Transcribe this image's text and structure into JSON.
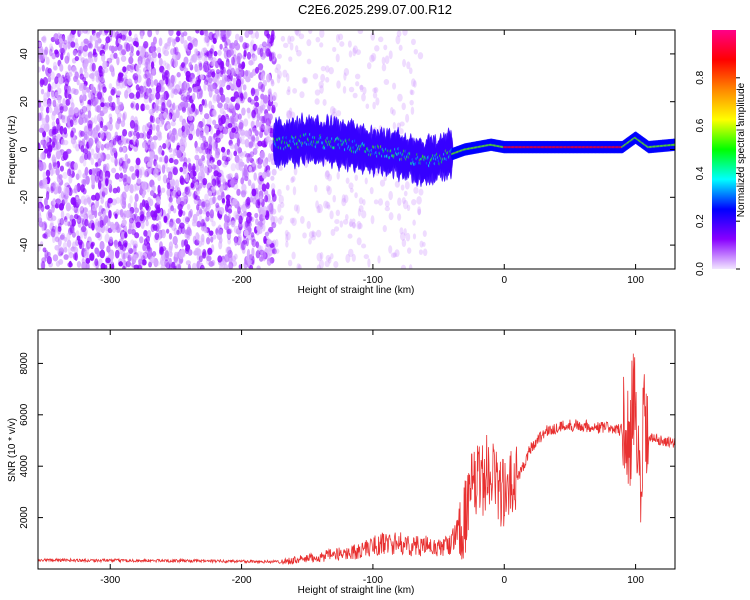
{
  "title": "C2E6.2025.299.07.00.R12",
  "chart_data": [
    {
      "type": "heatmap",
      "xlabel": "Height of straight line (km)",
      "ylabel": "Frequency (Hz)",
      "xlim": [
        -355,
        130
      ],
      "ylim": [
        -50,
        50
      ],
      "xticks": [
        -300,
        -200,
        -100,
        0,
        100
      ],
      "yticks": [
        -40,
        -20,
        0,
        20,
        40
      ],
      "grid": false,
      "colorbar": {
        "label": "Normalized spectral amplitude",
        "range": [
          0,
          1
        ],
        "ticks": [
          "0.0",
          "0.2",
          "0.4",
          "0.6",
          "0.8"
        ],
        "colors": [
          "#f2e6ff",
          "#8800ff",
          "#0000ff",
          "#00ffff",
          "#00ff00",
          "#ffff00",
          "#ff8800",
          "#ff0000",
          "#ff0088"
        ]
      },
      "features": [
        {
          "region": "broadband noise",
          "x_range": [
            -355,
            -175
          ],
          "freq_range": [
            -50,
            50
          ],
          "amplitude": 0.1
        },
        {
          "region": "sparse noise",
          "x_range": [
            -175,
            -60
          ],
          "freq_range": [
            -50,
            50
          ],
          "amplitude": 0.05
        },
        {
          "region": "signal ridge",
          "points": [
            [
              -175,
              2
            ],
            [
              -150,
              4
            ],
            [
              -120,
              2
            ],
            [
              -100,
              0
            ],
            [
              -80,
              -2
            ],
            [
              -60,
              -5
            ],
            [
              -45,
              -3
            ],
            [
              -30,
              0
            ],
            [
              -10,
              2
            ],
            [
              0,
              1
            ],
            [
              50,
              1
            ],
            [
              90,
              1
            ],
            [
              100,
              5
            ],
            [
              110,
              1
            ],
            [
              130,
              2
            ]
          ],
          "amplitude": 0.9
        }
      ]
    },
    {
      "type": "line",
      "xlabel": "Height of straight line (km)",
      "ylabel": "SNR (10 * v/v)",
      "xlim": [
        -355,
        130
      ],
      "ylim": [
        0,
        9300
      ],
      "xticks": [
        -300,
        -200,
        -100,
        0,
        100
      ],
      "yticks": [
        2000,
        4000,
        6000,
        8000
      ],
      "grid": false,
      "series": [
        {
          "color": "#e83030",
          "x": [
            -355,
            -300,
            -250,
            -200,
            -170,
            -150,
            -130,
            -110,
            -100,
            -90,
            -80,
            -70,
            -60,
            -50,
            -40,
            -30,
            -25,
            -20,
            -15,
            -10,
            -5,
            0,
            10,
            20,
            30,
            40,
            50,
            60,
            70,
            80,
            90,
            95,
            100,
            103,
            106,
            110,
            120,
            130
          ],
          "y": [
            350,
            330,
            320,
            300,
            280,
            400,
            550,
            700,
            900,
            1000,
            1000,
            900,
            900,
            800,
            1000,
            2000,
            3000,
            3400,
            3600,
            4000,
            3300,
            2800,
            3500,
            4700,
            5300,
            5500,
            5600,
            5600,
            5500,
            5500,
            5400,
            5000,
            6500,
            2000,
            5300,
            5100,
            5000,
            4900
          ]
        }
      ]
    }
  ]
}
